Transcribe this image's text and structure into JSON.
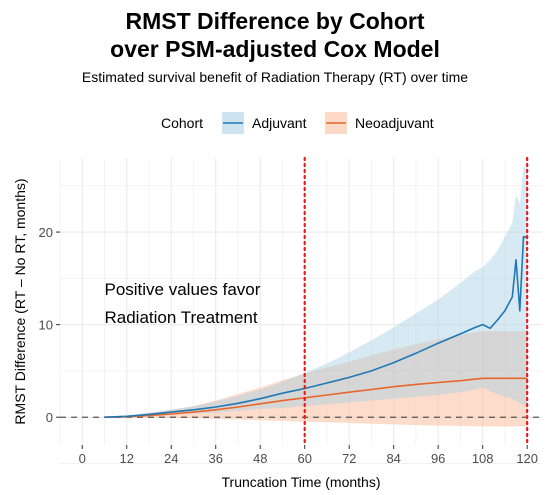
{
  "title_line1": "RMST Difference by Cohort",
  "title_line2": "over PSM-adjusted Cox Model",
  "subtitle": "Estimated survival benefit of Radiation Therapy (RT) over time",
  "legend": {
    "title": "Cohort",
    "items": [
      "Adjuvant",
      "Neoadjuvant"
    ]
  },
  "annotation": [
    "Positive values favor",
    "Radiation Treatment"
  ],
  "colors": {
    "adjuvant_line": "#1f78b4",
    "adjuvant_band": "#a6cee3",
    "neoadjuvant_line": "#e8662a",
    "neoadjuvant_band": "#fbb99a",
    "reference_line": "#e8191c",
    "zero_line": "#555555",
    "panel": "#ffffff",
    "grid": "#ebebeb"
  },
  "chart_data": {
    "type": "line",
    "xlabel": "Truncation Time (months)",
    "ylabel": "RMST Difference (RT – No RT, months)",
    "xlim": [
      -6,
      124
    ],
    "ylim": [
      -3,
      28
    ],
    "xticks": [
      0,
      12,
      24,
      36,
      48,
      60,
      72,
      84,
      96,
      108,
      120
    ],
    "yticks": [
      0,
      10,
      20
    ],
    "reference_lines_x": [
      60,
      120
    ],
    "zero_line_y": 0,
    "grid": true,
    "legend_position": "top",
    "series": [
      {
        "name": "Adjuvant",
        "x": [
          6,
          12,
          18,
          24,
          30,
          36,
          42,
          48,
          54,
          60,
          66,
          72,
          78,
          84,
          90,
          96,
          102,
          106,
          108,
          110,
          112,
          114,
          116,
          117,
          118,
          119,
          120
        ],
        "y": [
          0,
          0.1,
          0.3,
          0.55,
          0.8,
          1.1,
          1.5,
          2.0,
          2.6,
          3.1,
          3.7,
          4.3,
          5.0,
          5.9,
          6.9,
          8.0,
          9.0,
          9.7,
          10.0,
          9.6,
          10.5,
          11.5,
          13.0,
          17.0,
          11.5,
          19.5,
          19.4
        ],
        "lower": [
          0,
          0.05,
          0.15,
          0.3,
          0.4,
          0.5,
          0.7,
          0.9,
          1.0,
          1.2,
          1.4,
          1.6,
          1.8,
          2.0,
          2.2,
          2.4,
          2.7,
          3.0,
          3.2,
          2.8,
          2.5,
          2.2,
          2.0,
          1.8,
          1.5,
          1.3,
          1.2
        ],
        "upper": [
          0,
          0.2,
          0.5,
          0.8,
          1.2,
          1.7,
          2.3,
          3.0,
          3.8,
          4.8,
          5.8,
          7.0,
          8.3,
          9.7,
          11.2,
          12.7,
          14.5,
          15.8,
          16.2,
          17.0,
          18.0,
          19.5,
          21.0,
          24.0,
          23.0,
          27.0,
          27.0
        ]
      },
      {
        "name": "Neoadjuvant",
        "x": [
          6,
          12,
          18,
          24,
          30,
          36,
          42,
          48,
          54,
          60,
          66,
          72,
          78,
          84,
          90,
          96,
          102,
          108,
          114,
          120
        ],
        "y": [
          0,
          0.05,
          0.2,
          0.35,
          0.55,
          0.8,
          1.1,
          1.45,
          1.8,
          2.1,
          2.4,
          2.7,
          3.0,
          3.3,
          3.55,
          3.75,
          3.95,
          4.2,
          4.2,
          4.2
        ],
        "lower": [
          0,
          -0.02,
          -0.05,
          -0.08,
          -0.12,
          -0.18,
          -0.25,
          -0.32,
          -0.4,
          -0.48,
          -0.55,
          -0.62,
          -0.7,
          -0.78,
          -0.85,
          -0.9,
          -0.95,
          -1.0,
          -1.0,
          -1.0
        ],
        "upper": [
          0,
          0.12,
          0.45,
          0.8,
          1.2,
          1.8,
          2.5,
          3.2,
          4.0,
          4.7,
          5.4,
          6.0,
          6.7,
          7.3,
          7.9,
          8.4,
          8.9,
          9.3,
          9.3,
          9.3
        ]
      }
    ]
  }
}
